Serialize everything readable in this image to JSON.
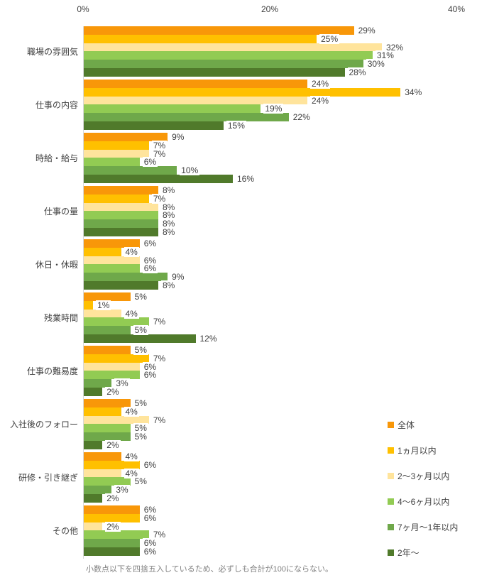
{
  "chart_data": {
    "type": "bar",
    "orientation": "horizontal",
    "title": "",
    "categories": [
      "職場の雰囲気",
      "仕事の内容",
      "時給・給与",
      "仕事の量",
      "休日・休暇",
      "残業時間",
      "仕事の難易度",
      "入社後のフォロー",
      "研修・引き継ぎ",
      "その他"
    ],
    "series": [
      {
        "name": "全体",
        "color": "#F89709",
        "values": [
          29,
          24,
          9,
          8,
          6,
          5,
          5,
          5,
          4,
          6
        ]
      },
      {
        "name": "1ヵ月以内",
        "color": "#FFC000",
        "values": [
          25,
          34,
          7,
          7,
          4,
          1,
          7,
          4,
          6,
          6
        ]
      },
      {
        "name": "2〜3ヶ月以内",
        "color": "#FFE49C",
        "values": [
          32,
          24,
          7,
          8,
          6,
          4,
          6,
          7,
          4,
          2
        ]
      },
      {
        "name": "4〜6ヶ月以内",
        "color": "#92CB53",
        "values": [
          31,
          19,
          6,
          8,
          6,
          7,
          6,
          5,
          5,
          7
        ]
      },
      {
        "name": "7ヶ月〜1年以内",
        "color": "#6FA84A",
        "values": [
          30,
          22,
          10,
          8,
          9,
          5,
          3,
          5,
          3,
          6
        ]
      },
      {
        "name": "2年〜",
        "color": "#507A2B",
        "values": [
          28,
          15,
          16,
          8,
          8,
          12,
          2,
          2,
          2,
          6
        ]
      }
    ],
    "x_axis": {
      "ticks": [
        "0%",
        "20%",
        "40%"
      ],
      "max": 40,
      "grid": false
    },
    "value_suffix": "%",
    "legend_position": "right",
    "footnote": "小数点以下を四捨五入しているため、必ずしも合計が100にならない。"
  }
}
